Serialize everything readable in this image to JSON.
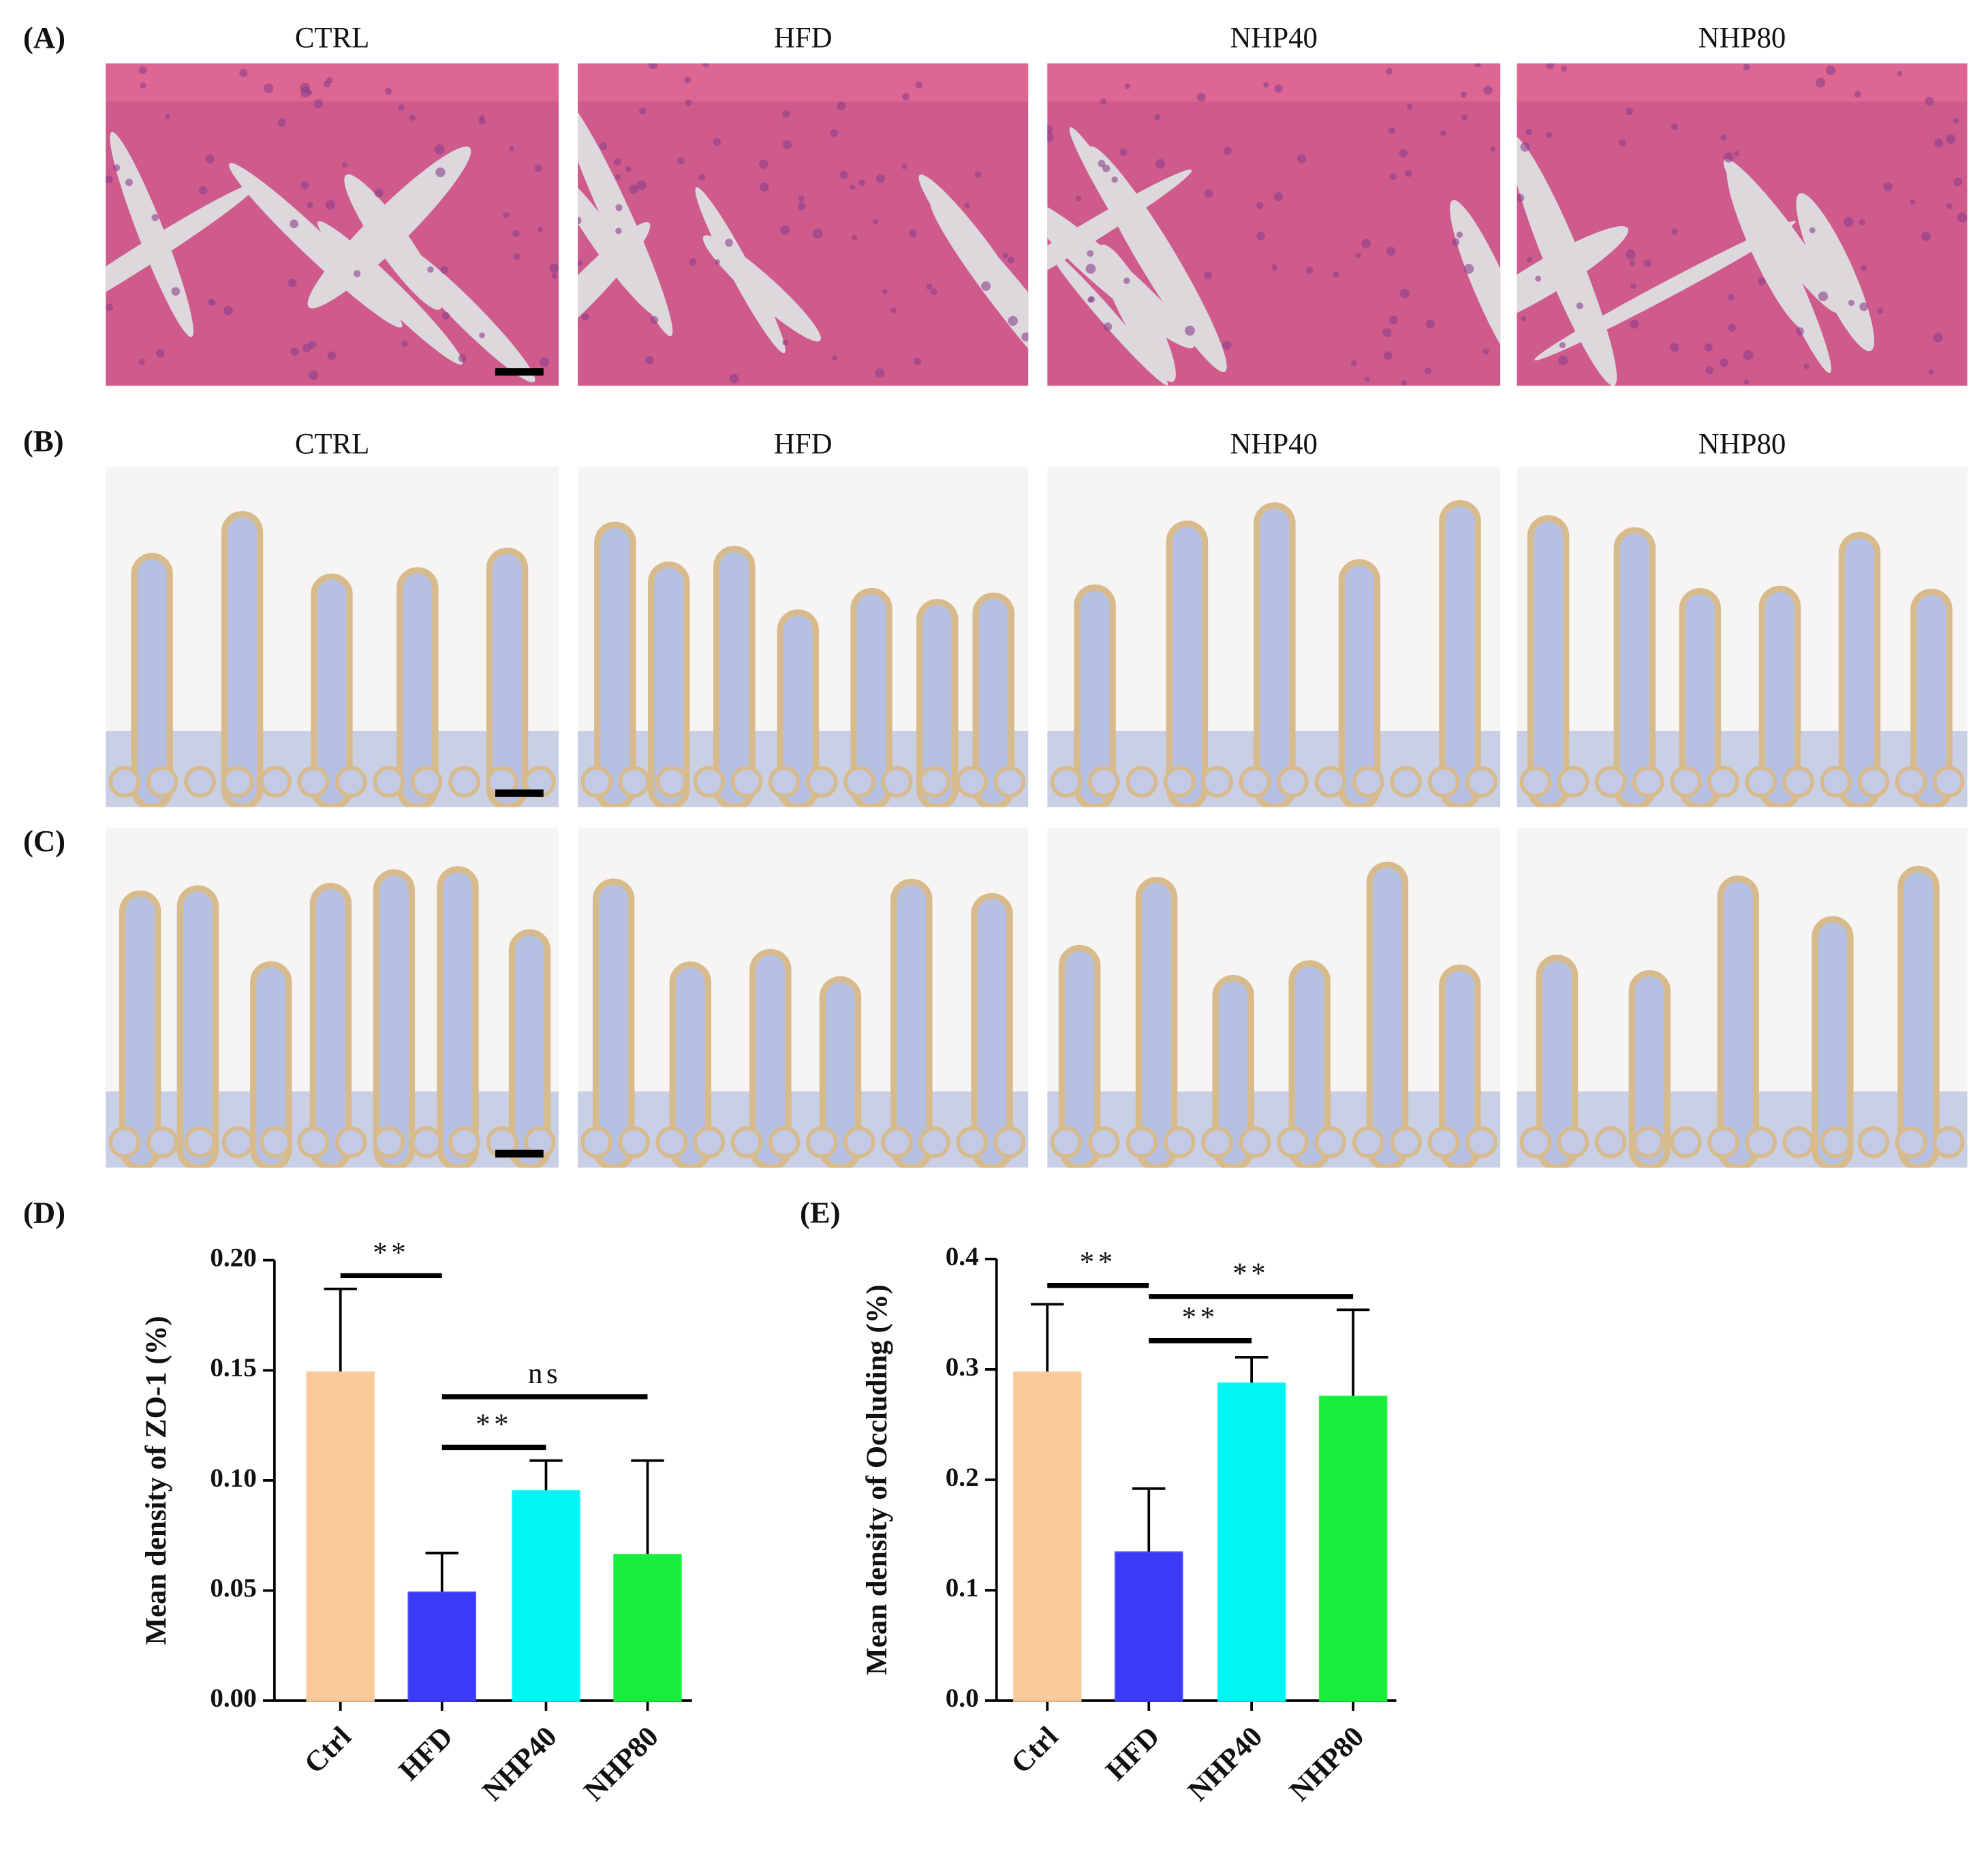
{
  "image_panels": [
    {
      "label": "(A)",
      "titles": [
        "CTRL",
        "HFD",
        "NHP40",
        "NHP80"
      ]
    },
    {
      "label": "(B)",
      "titles": [
        "CTRL",
        "HFD",
        "NHP40",
        "NHP80"
      ]
    },
    {
      "label": "(C)"
    }
  ],
  "chart_data": [
    {
      "type": "bar",
      "panel_label": "(D)",
      "y_label": "Mean density of ZO-1 (%)",
      "categories": [
        "Ctrl",
        "HFD",
        "NHP40",
        "NHP80"
      ],
      "values": [
        0.149,
        0.049,
        0.095,
        0.066
      ],
      "errors": [
        0.038,
        0.018,
        0.014,
        0.043
      ],
      "colors": [
        "#f9c99a",
        "#3b3bf7",
        "#00f5f5",
        "#17ee3c"
      ],
      "ylim": [
        0,
        0.2
      ],
      "yticks": [
        {
          "value": 0,
          "label": "0.00"
        },
        {
          "value": 0.05,
          "label": "0.05"
        },
        {
          "value": 0.1,
          "label": "0.10"
        },
        {
          "value": 0.15,
          "label": "0.15"
        },
        {
          "value": 0.2,
          "label": "0.20"
        }
      ],
      "annotations": [
        {
          "text": "**",
          "from": "Ctrl",
          "to": "HFD",
          "y": 0.193
        },
        {
          "text": "ns",
          "from": "HFD",
          "to": "NHP80",
          "y": 0.138
        },
        {
          "text": "**",
          "from": "HFD",
          "to": "NHP40",
          "y": 0.115
        }
      ]
    },
    {
      "type": "bar",
      "panel_label": "(E)",
      "y_label": "Mean density of Occluding (%)",
      "categories": [
        "Ctrl",
        "HFD",
        "NHP40",
        "NHP80"
      ],
      "values": [
        0.297,
        0.134,
        0.287,
        0.275
      ],
      "errors": [
        0.062,
        0.058,
        0.024,
        0.079
      ],
      "colors": [
        "#f9c99a",
        "#3b3bf7",
        "#00f5f5",
        "#17ee3c"
      ],
      "ylim": [
        0,
        0.4
      ],
      "yticks": [
        {
          "value": 0,
          "label": "0.0"
        },
        {
          "value": 0.1,
          "label": "0.1"
        },
        {
          "value": 0.2,
          "label": "0.2"
        },
        {
          "value": 0.3,
          "label": "0.3"
        },
        {
          "value": 0.4,
          "label": "0.4"
        }
      ],
      "annotations": [
        {
          "text": "**",
          "from": "Ctrl",
          "to": "HFD",
          "y": 0.376
        },
        {
          "text": "**",
          "from": "HFD",
          "to": "NHP80",
          "y": 0.366
        },
        {
          "text": "**",
          "from": "HFD",
          "to": "NHP40",
          "y": 0.326
        }
      ]
    }
  ]
}
